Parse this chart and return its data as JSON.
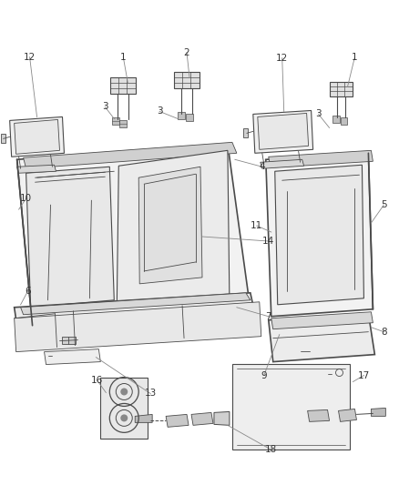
{
  "background_color": "#ffffff",
  "line_color": "#4a4a4a",
  "label_color": "#333333",
  "callout_color": "#888888",
  "fig_width": 4.38,
  "fig_height": 5.33,
  "dpi": 100,
  "seat_fill": "#f0f0f0",
  "seat_fill2": "#e4e4e4",
  "seat_fill3": "#d8d8d8",
  "seat_fill_dark": "#c8c8c8"
}
